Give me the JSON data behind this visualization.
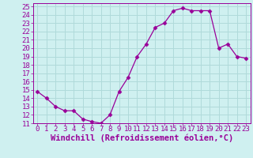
{
  "x": [
    0,
    1,
    2,
    3,
    4,
    5,
    6,
    7,
    8,
    9,
    10,
    11,
    12,
    13,
    14,
    15,
    16,
    17,
    18,
    19,
    20,
    21,
    22,
    23
  ],
  "y": [
    14.8,
    14.0,
    13.0,
    12.5,
    12.5,
    11.5,
    11.2,
    11.0,
    12.0,
    14.8,
    16.5,
    19.0,
    20.5,
    22.5,
    23.0,
    24.5,
    24.8,
    24.5,
    24.5,
    24.5,
    20.0,
    20.5,
    19.0,
    18.8
  ],
  "xlabel": "Windchill (Refroidissement éolien,°C)",
  "xlim_min": -0.5,
  "xlim_max": 23.5,
  "ylim_min": 11,
  "ylim_max": 25.4,
  "yticks": [
    11,
    12,
    13,
    14,
    15,
    16,
    17,
    18,
    19,
    20,
    21,
    22,
    23,
    24,
    25
  ],
  "xticks": [
    0,
    1,
    2,
    3,
    4,
    5,
    6,
    7,
    8,
    9,
    10,
    11,
    12,
    13,
    14,
    15,
    16,
    17,
    18,
    19,
    20,
    21,
    22,
    23
  ],
  "line_color": "#990099",
  "marker": "D",
  "marker_size": 2.5,
  "bg_color": "#cff0f0",
  "grid_color": "#b0dada",
  "tick_label_fontsize": 6.5,
  "xlabel_fontsize": 7.5
}
